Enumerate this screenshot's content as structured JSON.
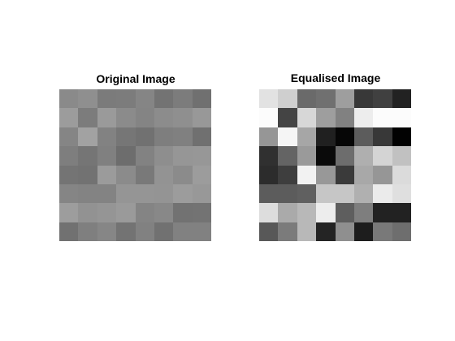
{
  "panels": [
    {
      "title": "Original Image",
      "pixels": [
        [
          138,
          143,
          123,
          124,
          133,
          115,
          124,
          112
        ],
        [
          156,
          124,
          154,
          139,
          132,
          140,
          143,
          152
        ],
        [
          133,
          162,
          130,
          118,
          113,
          126,
          128,
          112
        ],
        [
          126,
          117,
          128,
          109,
          130,
          142,
          150,
          151
        ],
        [
          116,
          114,
          155,
          139,
          121,
          147,
          139,
          156
        ],
        [
          133,
          131,
          131,
          149,
          149,
          148,
          156,
          152
        ],
        [
          157,
          146,
          149,
          154,
          132,
          136,
          114,
          115
        ],
        [
          113,
          127,
          134,
          115,
          129,
          113,
          129,
          129
        ]
      ]
    },
    {
      "title": "Equalised Image",
      "pixels": [
        [
          226,
          207,
          106,
          112,
          158,
          56,
          64,
          34
        ],
        [
          252,
          68,
          215,
          158,
          129,
          237,
          252,
          252
        ],
        [
          150,
          245,
          166,
          32,
          6,
          92,
          56,
          2
        ],
        [
          48,
          100,
          154,
          10,
          109,
          175,
          212,
          193
        ],
        [
          44,
          62,
          242,
          152,
          58,
          168,
          150,
          219
        ],
        [
          92,
          92,
          96,
          198,
          198,
          176,
          235,
          223
        ],
        [
          221,
          170,
          184,
          237,
          94,
          126,
          34,
          34
        ],
        [
          88,
          123,
          184,
          36,
          143,
          29,
          121,
          110
        ]
      ]
    }
  ]
}
